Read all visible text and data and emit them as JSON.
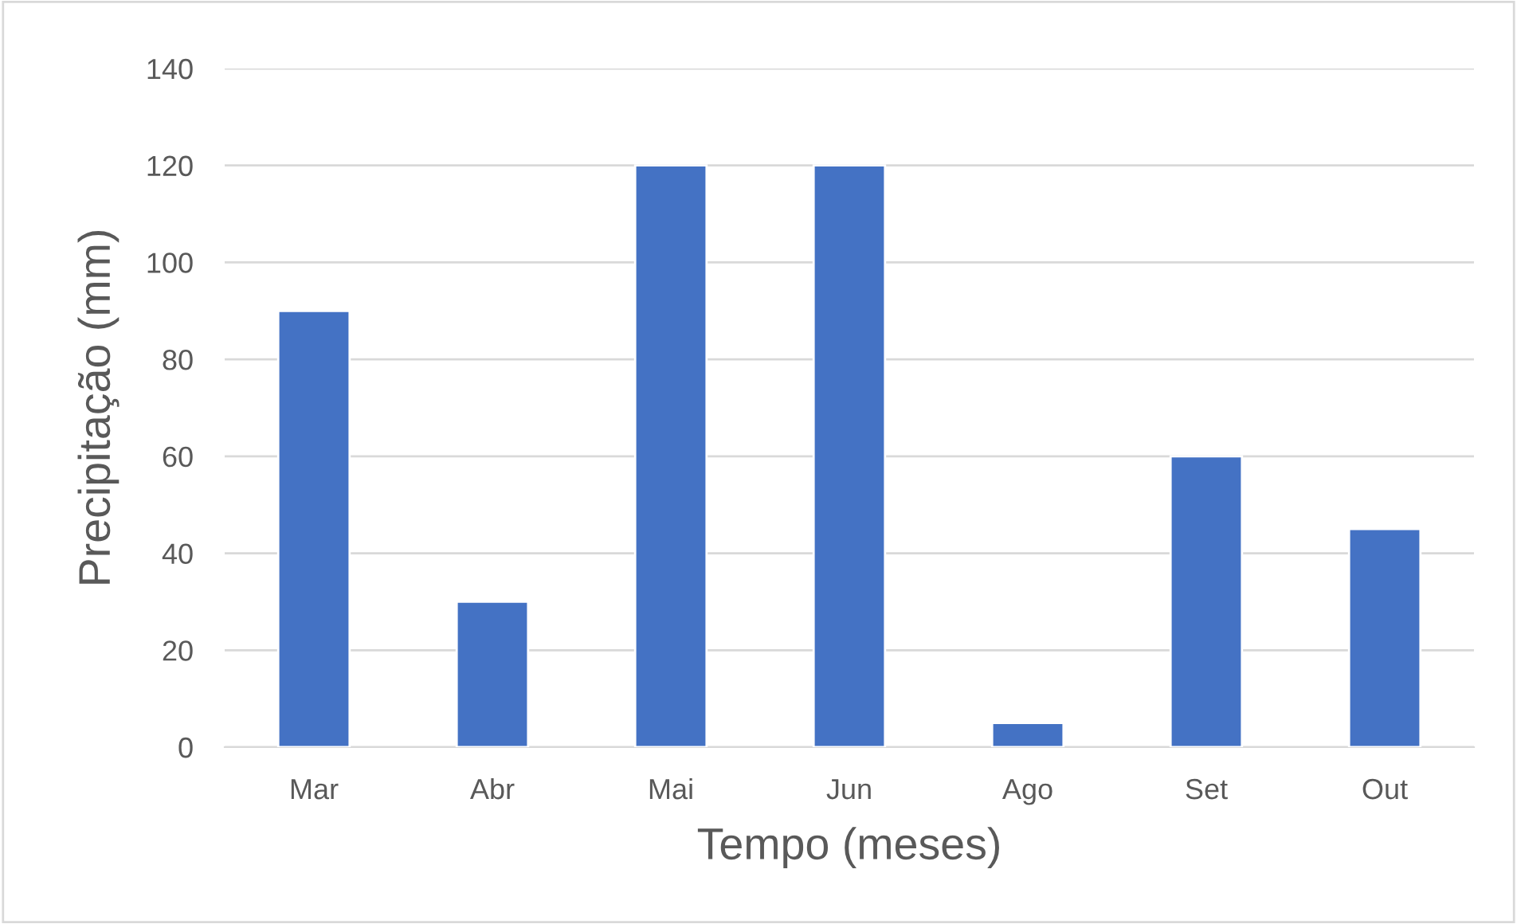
{
  "chart_data": {
    "type": "bar",
    "xlabel": "Tempo (meses)",
    "ylabel": "Precipitação (mm)",
    "categories": [
      "Mar",
      "Abr",
      "Mai",
      "Jun",
      "Ago",
      "Set",
      "Out"
    ],
    "values": [
      90,
      30,
      120,
      120,
      5,
      60,
      45
    ],
    "color": "#4472c4",
    "ylim": [
      0,
      140
    ],
    "yticks": [
      0,
      20,
      40,
      60,
      80,
      100,
      120,
      140
    ],
    "grid": "y",
    "legend": false
  }
}
